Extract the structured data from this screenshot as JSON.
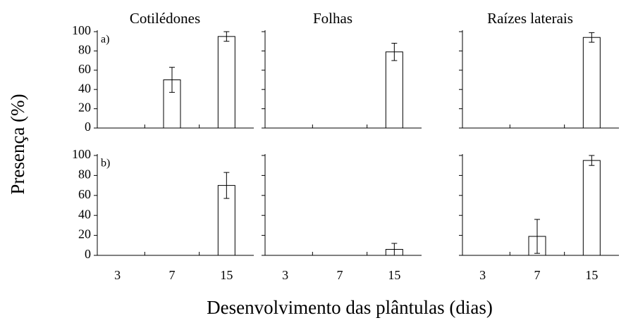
{
  "chart_data": [
    {
      "type": "bar",
      "title": "Cotilédones",
      "annotation": "a)",
      "ylabel": "Presença (%)",
      "categories": [
        null,
        null,
        null
      ],
      "values": [
        0,
        50,
        95
      ],
      "errors": [
        0,
        13,
        5
      ],
      "ylim": [
        0,
        100
      ],
      "yticks": [
        0,
        20,
        40,
        60,
        80,
        100
      ],
      "show_ytick_labels": true,
      "color": "#ffffff"
    },
    {
      "type": "bar",
      "title": "Folhas",
      "categories": [
        null,
        null,
        null
      ],
      "values": [
        0,
        0,
        79
      ],
      "errors": [
        0,
        0,
        9
      ],
      "ylim": [
        0,
        100
      ],
      "yticks": [
        0,
        20,
        40,
        60,
        80,
        100
      ],
      "show_ytick_labels": false,
      "color": "#ffffff"
    },
    {
      "type": "bar",
      "title": "Raízes laterais",
      "categories": [
        null,
        null,
        null
      ],
      "values": [
        0,
        0,
        94
      ],
      "errors": [
        0,
        0,
        5
      ],
      "ylim": [
        0,
        100
      ],
      "yticks": [
        0,
        20,
        40,
        60,
        80,
        100
      ],
      "show_ytick_labels": false,
      "color": "#ffffff"
    },
    {
      "type": "bar",
      "annotation": "b)",
      "categories": [
        "3",
        "7",
        "15"
      ],
      "values": [
        0,
        0,
        70
      ],
      "errors": [
        0,
        0,
        13
      ],
      "ylim": [
        0,
        100
      ],
      "yticks": [
        0,
        20,
        40,
        60,
        80,
        100
      ],
      "show_ytick_labels": true,
      "color": "#ffffff"
    },
    {
      "type": "bar",
      "xlabel": "Desenvolvimento das plântulas (dias)",
      "categories": [
        "3",
        "7",
        "15"
      ],
      "values": [
        0,
        0,
        6
      ],
      "errors": [
        0,
        0,
        6
      ],
      "ylim": [
        0,
        100
      ],
      "yticks": [
        0,
        20,
        40,
        60,
        80,
        100
      ],
      "show_ytick_labels": false,
      "color": "#ffffff"
    },
    {
      "type": "bar",
      "categories": [
        "3",
        "7",
        "15"
      ],
      "values": [
        0,
        19,
        95
      ],
      "errors": [
        0,
        17,
        5
      ],
      "ylim": [
        0,
        100
      ],
      "yticks": [
        0,
        20,
        40,
        60,
        80,
        100
      ],
      "show_ytick_labels": false,
      "color": "#ffffff"
    }
  ]
}
